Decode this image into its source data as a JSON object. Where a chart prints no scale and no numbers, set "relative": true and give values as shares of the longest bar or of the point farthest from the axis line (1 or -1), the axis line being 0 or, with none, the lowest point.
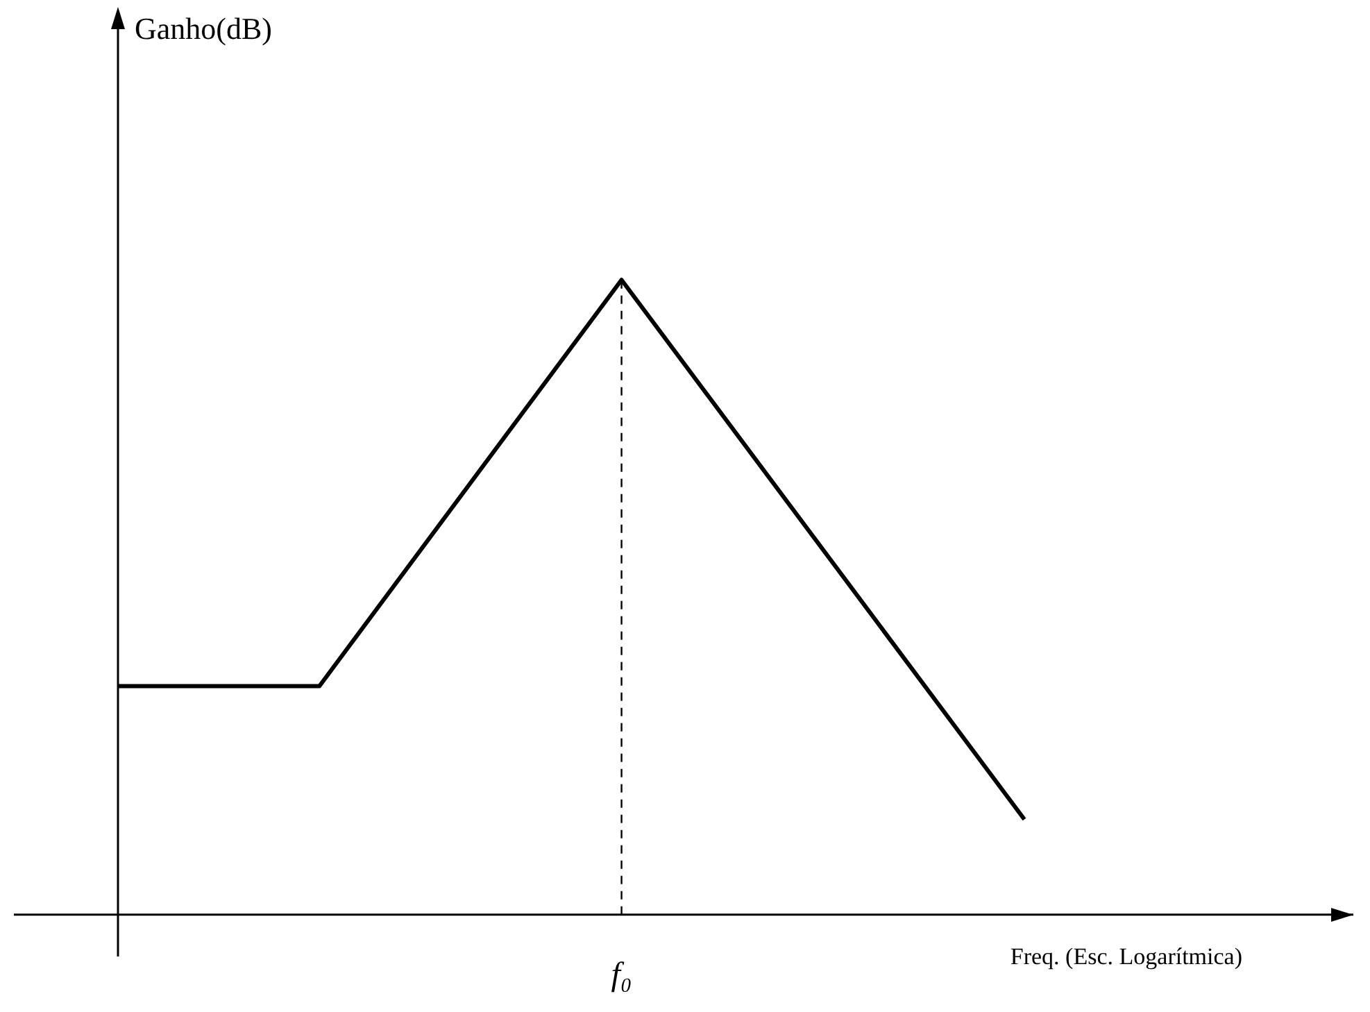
{
  "chart_data": {
    "type": "line",
    "xlabel": "Freq. (Esc. Logarítmica)",
    "relative": true,
    "categories": [
      null,
      null,
      null,
      null,
      null,
      null,
      null,
      null,
      null,
      null
    ],
    "series": [
      {
        "color": "#000000",
        "values": [
          0.36,
          null,
          0.36,
          null,
          null,
          1,
          null,
          null,
          null,
          0.15
        ]
      }
    ],
    "annotations": [
      "f₀",
      "Ganho(dB)"
    ],
    "marker": "none"
  }
}
